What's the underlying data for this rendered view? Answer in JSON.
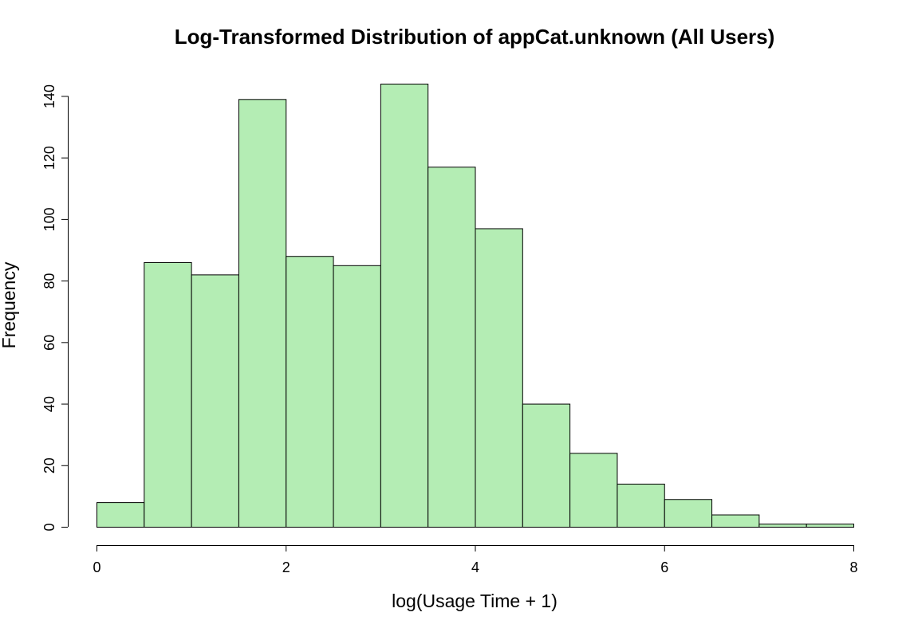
{
  "chart_data": {
    "type": "bar",
    "title": "Log-Transformed Distribution of appCat.unknown (All Users)",
    "xlabel": "log(Usage Time + 1)",
    "ylabel": "Frequency",
    "bin_edges": [
      0,
      0.5,
      1,
      1.5,
      2,
      2.5,
      3,
      3.5,
      4,
      4.5,
      5,
      5.5,
      6,
      6.5,
      7,
      7.5,
      8
    ],
    "values": [
      8,
      86,
      82,
      139,
      88,
      85,
      144,
      117,
      97,
      40,
      24,
      14,
      9,
      4,
      1,
      1
    ],
    "xlim": [
      0,
      8
    ],
    "ylim": [
      0,
      144
    ],
    "x_ticks": [
      0,
      2,
      4,
      6,
      8
    ],
    "y_ticks": [
      0,
      20,
      40,
      60,
      80,
      100,
      120,
      140
    ],
    "grid": false,
    "bar_color": "#b4edb4",
    "edge_color": "#000000"
  }
}
